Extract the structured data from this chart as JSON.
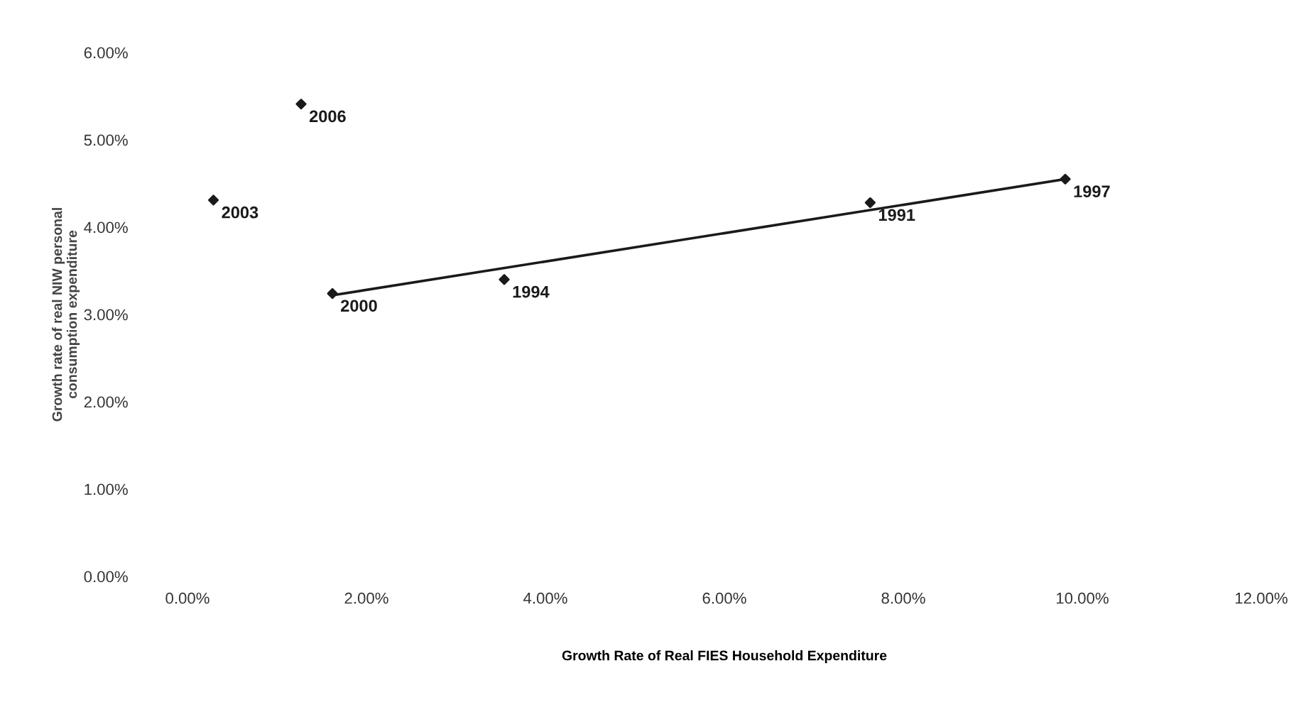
{
  "chart_data": {
    "type": "scatter",
    "xlabel": "Growth Rate of Real FIES Household Expenditure",
    "ylabel": "Growth rate of real NIW personal\nconsumption expenditure",
    "series": [
      {
        "marker": "diamond",
        "color": "#1a1a1a",
        "x": [
          0.29,
          1.27,
          1.62,
          3.54,
          7.63,
          9.81
        ],
        "values": [
          4.31,
          5.41,
          3.24,
          3.4,
          4.28,
          4.55
        ]
      },
      {
        "type": "line",
        "marker": "none",
        "color": "#1a1a1a",
        "x": [
          1.62,
          9.81
        ],
        "values": [
          3.22,
          4.55
        ]
      }
    ],
    "annotations": [
      {
        "text": "2003",
        "x": 0.29,
        "y": 4.31
      },
      {
        "text": "2006",
        "x": 1.27,
        "y": 5.41
      },
      {
        "text": "2000",
        "x": 1.62,
        "y": 3.24
      },
      {
        "text": "1994",
        "x": 3.54,
        "y": 3.4
      },
      {
        "text": "1991",
        "x": 7.63,
        "y": 4.28
      },
      {
        "text": "1997",
        "x": 9.81,
        "y": 4.55
      }
    ],
    "xlim": [
      0,
      12
    ],
    "ylim": [
      0,
      6
    ],
    "xticks": [
      {
        "value": 0,
        "label": "0.00%"
      },
      {
        "value": 2,
        "label": "2.00%"
      },
      {
        "value": 4,
        "label": "4.00%"
      },
      {
        "value": 6,
        "label": "6.00%"
      },
      {
        "value": 8,
        "label": "8.00%"
      },
      {
        "value": 10,
        "label": "10.00%"
      },
      {
        "value": 12,
        "label": "12.00%"
      }
    ],
    "yticks": [
      {
        "value": 0,
        "label": "0.00%"
      },
      {
        "value": 1,
        "label": "1.00%"
      },
      {
        "value": 2,
        "label": "2.00%"
      },
      {
        "value": 3,
        "label": "3.00%"
      },
      {
        "value": 4,
        "label": "4.00%"
      },
      {
        "value": 5,
        "label": "5.00%"
      },
      {
        "value": 6,
        "label": "6.00%"
      }
    ],
    "grid": false,
    "legend": false
  }
}
